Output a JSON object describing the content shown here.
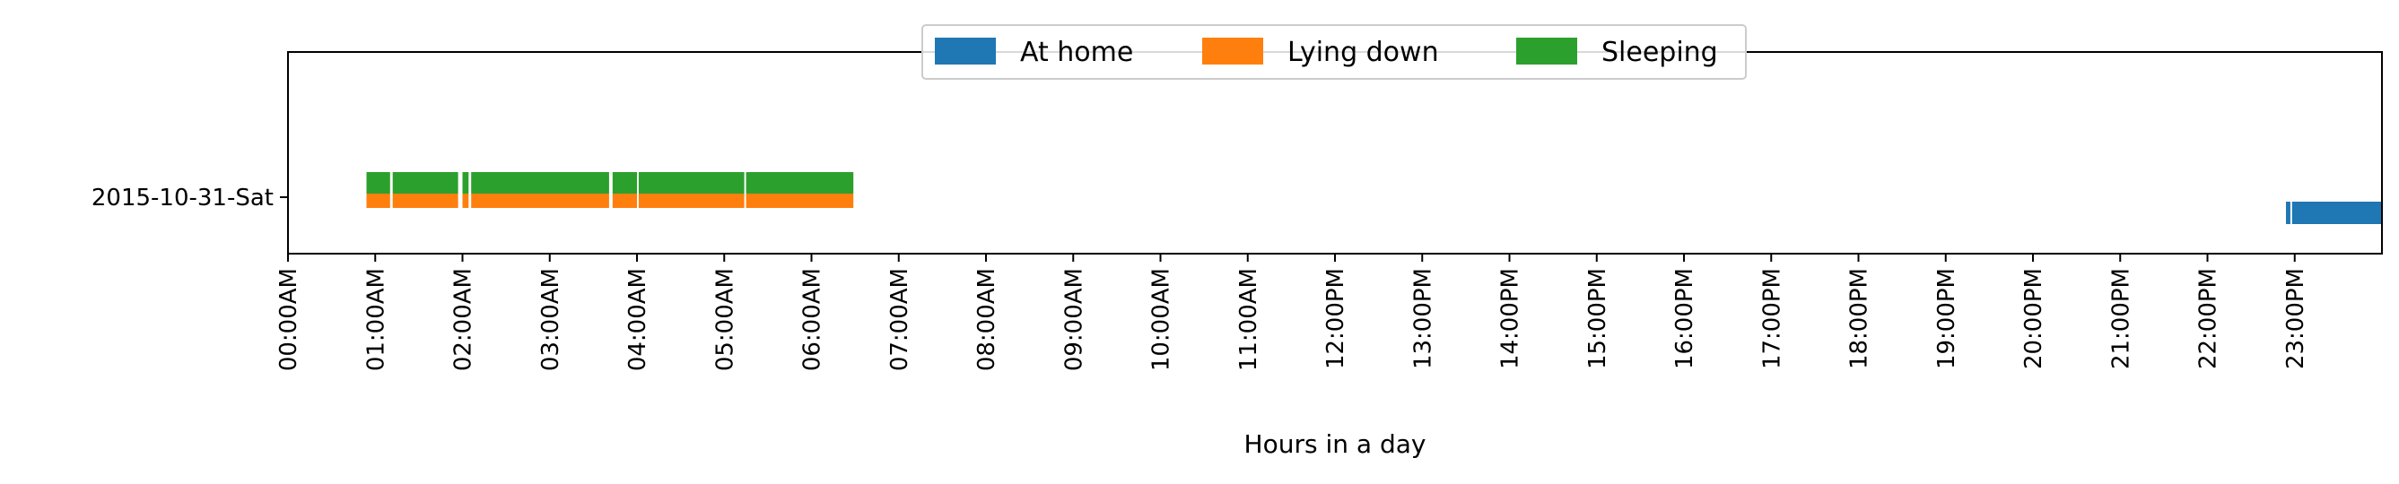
{
  "chart_data": {
    "type": "timeline",
    "xlabel": "Hours in a day",
    "x_range_hours": [
      0,
      24
    ],
    "x_ticks": [
      "00:00AM",
      "01:00AM",
      "02:00AM",
      "03:00AM",
      "04:00AM",
      "05:00AM",
      "06:00AM",
      "07:00AM",
      "08:00AM",
      "09:00AM",
      "10:00AM",
      "11:00AM",
      "12:00PM",
      "13:00PM",
      "14:00PM",
      "15:00PM",
      "16:00PM",
      "17:00PM",
      "18:00PM",
      "19:00PM",
      "20:00PM",
      "21:00PM",
      "22:00PM",
      "23:00PM"
    ],
    "y_categories": [
      "2015-10-31-Sat"
    ],
    "legend_placement": "upper-center",
    "series": [
      {
        "name": "At home",
        "color": "#1f77b4",
        "intervals": [
          [
            22.9,
            22.95
          ],
          [
            22.97,
            23.99
          ]
        ]
      },
      {
        "name": "Lying down",
        "color": "#ff7f0e",
        "intervals": [
          [
            0.9,
            1.17
          ],
          [
            1.2,
            1.95
          ],
          [
            2.0,
            2.07
          ],
          [
            2.1,
            3.68
          ],
          [
            3.72,
            4.0
          ],
          [
            4.02,
            5.23
          ],
          [
            5.25,
            6.48
          ]
        ]
      },
      {
        "name": "Sleeping",
        "color": "#2ca02c",
        "intervals": [
          [
            0.9,
            1.17
          ],
          [
            1.2,
            1.95
          ],
          [
            2.0,
            2.07
          ],
          [
            2.1,
            3.68
          ],
          [
            3.72,
            4.0
          ],
          [
            4.02,
            5.23
          ],
          [
            5.25,
            6.48
          ]
        ]
      }
    ]
  }
}
